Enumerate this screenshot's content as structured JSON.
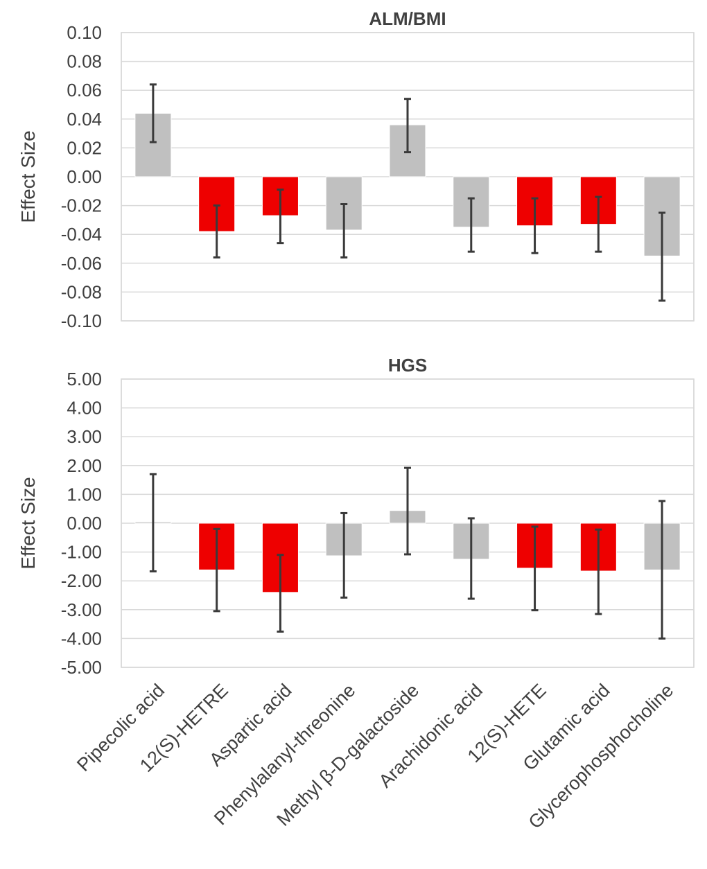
{
  "chart_data": [
    {
      "type": "bar",
      "title": "ALM/BMI",
      "ylabel": "Effect Size",
      "xlabel": "",
      "ylim": [
        -0.1,
        0.1
      ],
      "yticks": [
        "0.10",
        "0.08",
        "0.06",
        "0.04",
        "0.02",
        "0.00",
        "-0.02",
        "-0.04",
        "-0.06",
        "-0.08",
        "-0.10"
      ],
      "categories": [
        "Pipecolic acid",
        "12(S)-HETRE",
        "Aspartic acid",
        "Phenylalanyl-threonine",
        "Methyl β-D-galactoside",
        "Arachidonic acid",
        "12(S)-HETE",
        "Glutamic acid",
        "Glycerophosphocholine"
      ],
      "values": [
        0.044,
        -0.038,
        -0.027,
        -0.037,
        0.036,
        -0.035,
        -0.034,
        -0.033,
        -0.055
      ],
      "error_low": [
        0.024,
        -0.056,
        -0.046,
        -0.056,
        0.017,
        -0.052,
        -0.053,
        -0.052,
        -0.086
      ],
      "error_high": [
        0.064,
        -0.02,
        -0.009,
        -0.019,
        0.054,
        -0.015,
        -0.015,
        -0.014,
        -0.025
      ],
      "colors": [
        "#c0c0c0",
        "#ee0000",
        "#ee0000",
        "#c0c0c0",
        "#c0c0c0",
        "#c0c0c0",
        "#ee0000",
        "#ee0000",
        "#c0c0c0"
      ],
      "grid": true
    },
    {
      "type": "bar",
      "title": "HGS",
      "ylabel": "Effect Size",
      "xlabel": "",
      "ylim": [
        -5.0,
        5.0
      ],
      "yticks": [
        "5.00",
        "4.00",
        "3.00",
        "2.00",
        "1.00",
        "0.00",
        "-1.00",
        "-2.00",
        "-3.00",
        "-4.00",
        "-5.00"
      ],
      "categories": [
        "Pipecolic acid",
        "12(S)-HETRE",
        "Aspartic acid",
        "Phenylalanyl-threonine",
        "Methyl β-D-galactoside",
        "Arachidonic acid",
        "12(S)-HETE",
        "Glutamic acid",
        "Glycerophosphocholine"
      ],
      "values": [
        0.05,
        -1.62,
        -2.4,
        -1.13,
        0.44,
        -1.25,
        -1.56,
        -1.66,
        -1.62
      ],
      "error_low": [
        -1.67,
        -3.05,
        -3.76,
        -2.58,
        -1.08,
        -2.62,
        -3.02,
        -3.15,
        -4.0
      ],
      "error_high": [
        1.7,
        -0.2,
        -1.1,
        0.35,
        1.92,
        0.17,
        -0.12,
        -0.22,
        0.77
      ],
      "colors": [
        "#c0c0c0",
        "#ee0000",
        "#ee0000",
        "#c0c0c0",
        "#c0c0c0",
        "#c0c0c0",
        "#ee0000",
        "#ee0000",
        "#c0c0c0"
      ],
      "grid": true
    }
  ]
}
